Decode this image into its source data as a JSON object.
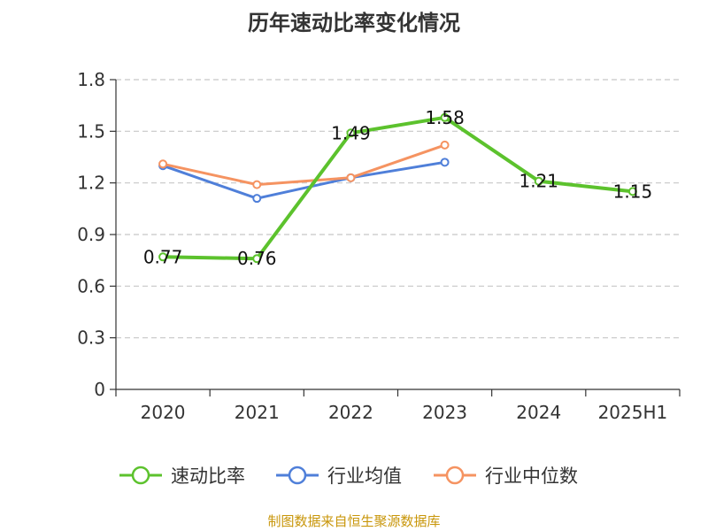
{
  "title": "历年速动比率变化情况",
  "source": "制图数据来自恒生聚源数据库",
  "chart_data": {
    "type": "line",
    "title": "历年速动比率变化情况",
    "xlabel": "",
    "ylabel": "",
    "categories": [
      "2020",
      "2021",
      "2022",
      "2023",
      "2024",
      "2025H1"
    ],
    "y_ticks": [
      "0",
      "0.3",
      "0.6",
      "0.9",
      "1.2",
      "1.5",
      "1.8"
    ],
    "ylim": [
      0,
      1.8
    ],
    "grid": true,
    "legend_position": "bottom",
    "series": [
      {
        "name": "速动比率",
        "color": "#5cc22d",
        "values": [
          0.77,
          0.76,
          1.49,
          1.58,
          1.21,
          1.15
        ],
        "labels": [
          "0.77",
          "0.76",
          "1.49",
          "1.58",
          "1.21",
          "1.15"
        ]
      },
      {
        "name": "行业均值",
        "color": "#4f7fd9",
        "values": [
          1.3,
          1.11,
          1.23,
          1.32,
          null,
          null
        ]
      },
      {
        "name": "行业中位数",
        "color": "#f59361",
        "values": [
          1.31,
          1.19,
          1.23,
          1.42,
          null,
          null
        ]
      }
    ]
  }
}
